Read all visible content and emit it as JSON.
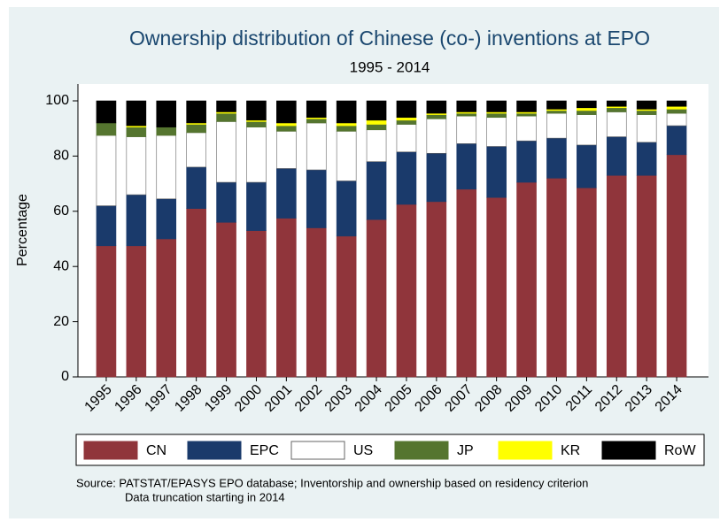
{
  "chart_data": {
    "type": "stacked_bar",
    "title": "Ownership distribution of Chinese (co-) inventions at EPO",
    "subtitle": "1995 - 2014",
    "y_label": "Percentage",
    "categories": [
      "1995",
      "1996",
      "1997",
      "1998",
      "1999",
      "2000",
      "2001",
      "2002",
      "2003",
      "2004",
      "2005",
      "2006",
      "2007",
      "2008",
      "2009",
      "2010",
      "2011",
      "2012",
      "2013",
      "2014"
    ],
    "series": [
      {
        "name": "CN",
        "color": "#90353b",
        "values": [
          47.5,
          47.5,
          50,
          61,
          56,
          53,
          57.5,
          54,
          51,
          57,
          62.5,
          63.5,
          68,
          65,
          70.5,
          72,
          68.5,
          73,
          73,
          80.5
        ]
      },
      {
        "name": "EPC",
        "color": "#1a3a6b",
        "values": [
          14.5,
          18.5,
          14.5,
          15,
          14.5,
          17.5,
          18,
          21,
          20,
          21,
          19,
          17.5,
          16.5,
          18.5,
          15,
          14.5,
          15.5,
          14,
          12,
          10.5
        ]
      },
      {
        "name": "US",
        "color": "#ffffff",
        "values": [
          25.5,
          21,
          23,
          12.5,
          22,
          20,
          13.5,
          17,
          18,
          11.5,
          10,
          12.5,
          10,
          10.5,
          9,
          9,
          11,
          9,
          10,
          4.5
        ]
      },
      {
        "name": "JP",
        "color": "#55752f",
        "values": [
          4.5,
          3.5,
          3,
          3,
          3,
          2,
          2,
          1.5,
          2,
          2,
          1.5,
          1.5,
          1,
          1.5,
          1,
          1,
          1.5,
          1.5,
          1.5,
          1.5
        ]
      },
      {
        "name": "KR",
        "color": "#ffff00",
        "values": [
          0,
          0.5,
          0,
          0.5,
          0.5,
          0.5,
          1,
          0.5,
          1,
          1.5,
          1,
          0.5,
          0.5,
          0.5,
          0.5,
          0.5,
          1,
          0.5,
          0.5,
          1
        ]
      },
      {
        "name": "RoW",
        "color": "#000000",
        "values": [
          8,
          9,
          9.5,
          8,
          4,
          7,
          8,
          6,
          8,
          7,
          6,
          4.5,
          4,
          4,
          4,
          3,
          2.5,
          2,
          3,
          2
        ]
      }
    ],
    "ylim": [
      0,
      100
    ],
    "yticks": [
      0,
      20,
      40,
      60,
      80,
      100
    ],
    "grid": false,
    "notes": [
      "Source: PATSTAT/EPASYS EPO database; Inventorship and ownership based on residency criterion",
      "Data truncation starting in 2014"
    ]
  }
}
